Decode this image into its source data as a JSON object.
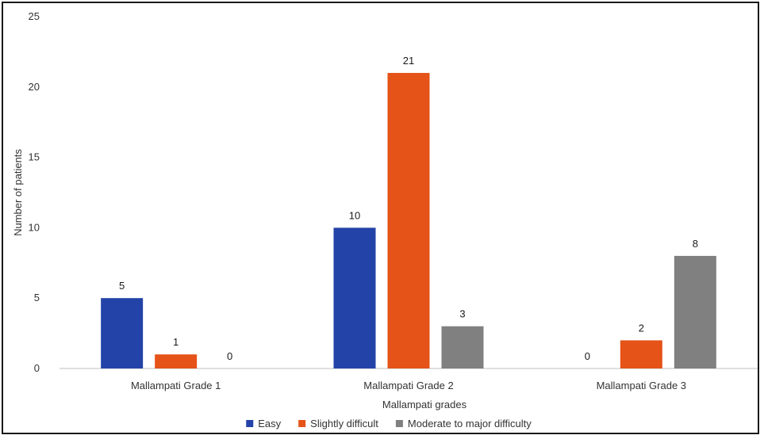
{
  "chart_data": {
    "type": "bar",
    "categories": [
      "Mallampati Grade 1",
      "Mallampati Grade 2",
      "Mallampati Grade 3"
    ],
    "series": [
      {
        "name": "Easy",
        "values": [
          5,
          10,
          0
        ],
        "color": "#2343a8"
      },
      {
        "name": "Slightly difficult",
        "values": [
          1,
          21,
          2
        ],
        "color": "#e55318"
      },
      {
        "name": "Moderate to major difficulty",
        "values": [
          0,
          3,
          8
        ],
        "color": "#808080"
      }
    ],
    "xlabel": "Mallampati grades",
    "ylabel": "Number of patients",
    "ylim": [
      0,
      25
    ],
    "yticks": [
      0,
      5,
      10,
      15,
      20,
      25
    ],
    "grid": false,
    "legend": "bottom"
  }
}
